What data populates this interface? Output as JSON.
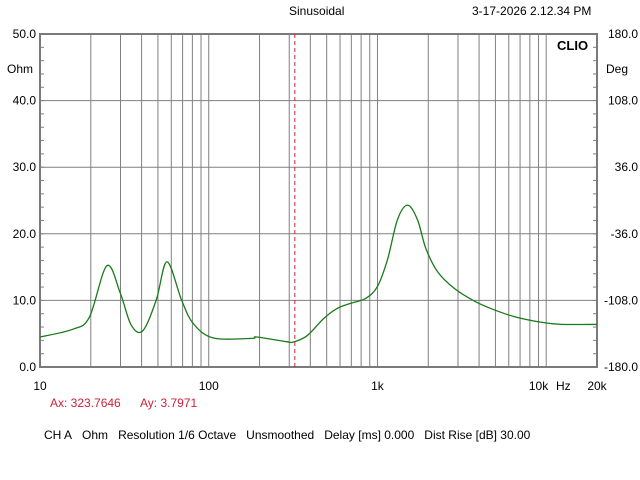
{
  "header": {
    "mode": "Sinusoidal",
    "timestamp": "3-17-2026 2.12.34 PM"
  },
  "brand": "CLIO",
  "cursor": {
    "ax_label": "Ax: 323.7646",
    "ay_label": "Ay: 3.7971",
    "frequency": 323.7646,
    "value": 3.7971,
    "color": "#d0203a"
  },
  "footer": {
    "channel": "CH A",
    "unit": "Ohm",
    "resolution": "Resolution 1/6 Octave",
    "smoothing": "Unsmoothed",
    "delay": "Delay [ms] 0.000",
    "dist_rise": "Dist Rise [dB] 30.00"
  },
  "chart_data": {
    "type": "line",
    "x_scale": "log",
    "xlim": [
      10,
      20000
    ],
    "ylim": [
      0,
      50
    ],
    "y2lim": [
      -180,
      180
    ],
    "grid": true,
    "ylabel": "Ohm",
    "y2label": "Deg",
    "xunit": "Hz",
    "x_tick_labels": [
      "10",
      "100",
      "1k",
      "10k",
      "20k"
    ],
    "x_tick_values": [
      10,
      100,
      1000,
      10000,
      20000
    ],
    "y_tick_labels": [
      "50.0",
      "40.0",
      "30.0",
      "20.0",
      "10.0",
      "0.0"
    ],
    "y_tick_values": [
      50,
      40,
      30,
      20,
      10,
      0
    ],
    "y2_tick_labels": [
      "180.0",
      "108.0",
      "36.0",
      "-36.0",
      "-108.0",
      "-180.0"
    ],
    "y2_tick_values": [
      180,
      108,
      36,
      -36,
      -108,
      -180
    ],
    "series": [
      {
        "color": "#1a7a1a",
        "x": [
          10,
          15.6,
          19.6,
          24.9,
          29.9,
          34.7,
          40.7,
          48.9,
          56.6,
          68.9,
          80.8,
          106.5,
          180,
          192,
          290,
          318,
          383,
          481,
          577,
          692,
          851,
          998,
          1145,
          1313,
          1507,
          1727,
          1935,
          2272,
          2853,
          3750,
          4830,
          6500,
          9440,
          12400,
          20000
        ],
        "y": [
          4.5,
          5.66,
          7.46,
          15.2,
          11.1,
          6.3,
          5.45,
          10.1,
          15.8,
          10.1,
          6.55,
          4.35,
          4.3,
          4.5,
          3.8,
          3.75,
          4.7,
          7.3,
          8.8,
          9.56,
          10.3,
          12.06,
          16.07,
          22.1,
          24.3,
          22.1,
          17.8,
          14.3,
          11.8,
          9.9,
          8.66,
          7.55,
          6.7,
          6.4,
          6.4
        ]
      }
    ]
  }
}
